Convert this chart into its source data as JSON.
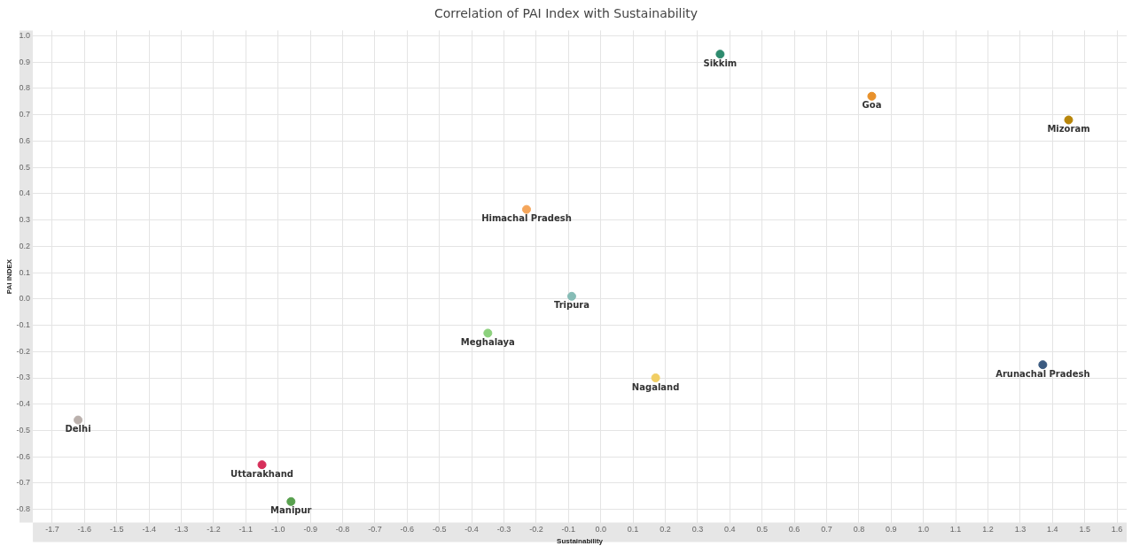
{
  "chart_data": {
    "type": "scatter",
    "title": "Correlation of PAI Index with Sustainability",
    "xlabel": "Sustainability",
    "ylabel": "PAI INDEX",
    "xlim": [
      -1.76,
      1.63
    ],
    "ylim": [
      -0.85,
      1.02
    ],
    "xticks": [
      -1.7,
      -1.6,
      -1.5,
      -1.4,
      -1.3,
      -1.2,
      -1.1,
      {
        "value": -1,
        "label": "-1.0"
      },
      -0.9,
      -0.8,
      -0.7,
      -0.6,
      -0.5,
      -0.4,
      -0.3,
      -0.2,
      -0.1,
      {
        "value": 0,
        "label": "0.0"
      },
      0.1,
      0.2,
      0.3,
      0.4,
      0.5,
      0.6,
      0.7,
      0.8,
      0.9,
      {
        "value": 1,
        "label": "1.0"
      },
      1.1,
      1.2,
      1.3,
      1.4,
      1.5,
      1.6
    ],
    "yticks": [
      -0.8,
      -0.7,
      -0.6,
      -0.5,
      -0.4,
      -0.3,
      -0.2,
      -0.1,
      {
        "value": 0,
        "label": "0.0"
      },
      0.1,
      0.2,
      0.3,
      0.4,
      0.5,
      0.6,
      0.7,
      0.8,
      0.9,
      {
        "value": 1,
        "label": "1.0"
      }
    ],
    "grid": true,
    "legend": false,
    "marker": "circle",
    "series": [
      {
        "name": "Sikkim",
        "color": "#2e8b6e",
        "x": [
          0.37
        ],
        "values": [
          0.93
        ]
      },
      {
        "name": "Goa",
        "color": "#e8912b",
        "x": [
          0.84
        ],
        "values": [
          0.77
        ]
      },
      {
        "name": "Mizoram",
        "color": "#b8860b",
        "x": [
          1.45
        ],
        "values": [
          0.68
        ]
      },
      {
        "name": "Himachal Pradesh",
        "color": "#f5a65b",
        "x": [
          -0.23
        ],
        "values": [
          0.34
        ]
      },
      {
        "name": "Tripura",
        "color": "#86bcb6",
        "x": [
          -0.09
        ],
        "values": [
          0.01
        ]
      },
      {
        "name": "Meghalaya",
        "color": "#8cd17d",
        "x": [
          -0.35
        ],
        "values": [
          -0.13
        ]
      },
      {
        "name": "Nagaland",
        "color": "#f1ce63",
        "x": [
          0.17
        ],
        "values": [
          -0.3
        ]
      },
      {
        "name": "Arunachal Pradesh",
        "color": "#3b5a80",
        "x": [
          1.37
        ],
        "values": [
          -0.25
        ]
      },
      {
        "name": "Delhi",
        "color": "#bab0ac",
        "x": [
          -1.62
        ],
        "values": [
          -0.46
        ]
      },
      {
        "name": "Uttarakhand",
        "color": "#d62f5a",
        "x": [
          -1.05
        ],
        "values": [
          -0.63
        ]
      },
      {
        "name": "Manipur",
        "color": "#59a14f",
        "x": [
          -0.96
        ],
        "values": [
          -0.77
        ]
      }
    ]
  }
}
